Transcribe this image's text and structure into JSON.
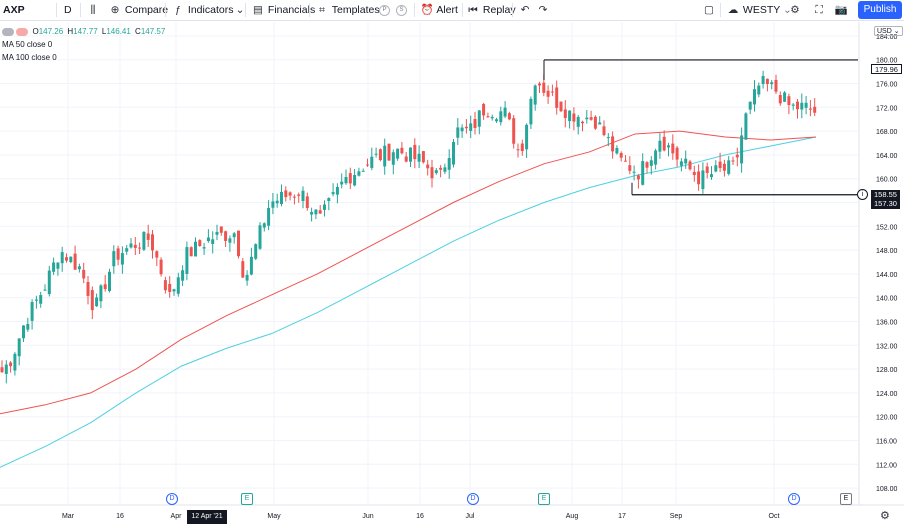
{
  "toolbar": {
    "symbol": "AXP",
    "interval": "D",
    "compare": "Compare",
    "indicators": "Indicators",
    "financials": "Financials",
    "templates": "Templates",
    "template_badge_p": "P",
    "template_badge_s": "S",
    "alert": "Alert",
    "replay": "Replay",
    "layout_name": "WESTY",
    "publish": "Publish"
  },
  "legend": {
    "o": "147.26",
    "h": "147.77",
    "l": "146.41",
    "c": "147.57",
    "o_key": "O",
    "h_key": "H",
    "l_key": "L",
    "c_key": "C",
    "ma50": "MA 50 close 0",
    "ma100": "MA 100 close 0"
  },
  "currency": "USD",
  "price_axis": [
    "184.00",
    "180.00",
    "176.00",
    "172.00",
    "168.00",
    "164.00",
    "160.00",
    "156.00",
    "152.00",
    "148.00",
    "144.00",
    "140.00",
    "136.00",
    "132.00",
    "128.00",
    "124.00",
    "120.00",
    "116.00",
    "112.00",
    "108.00"
  ],
  "price_tags": {
    "resistance": "179.96",
    "current": "158.55",
    "support": "157.30"
  },
  "time_axis": {
    "labels": [
      "Mar",
      "16",
      "Apr",
      "May",
      "Jun",
      "16",
      "Jul",
      "Aug",
      "17",
      "Sep",
      "Oct"
    ],
    "highlight": "12 Apr '21"
  },
  "events": {
    "dividend": "D",
    "earnings": "E"
  },
  "colors": {
    "up": "#26a69a",
    "down": "#ef5350",
    "ma50": "#ef5350",
    "ma100": "#4dd0e1",
    "accent": "#2962ff"
  },
  "chart_data": {
    "type": "candlestick",
    "symbol": "AXP",
    "interval": "D",
    "ylim": [
      106,
      186
    ],
    "last_ohlc": {
      "open": 147.26,
      "high": 147.77,
      "low": 146.41,
      "close": 147.57
    },
    "horizontal_lines": [
      179.96,
      157.3
    ],
    "series_mock_note_free": true,
    "closes_start": 127.0,
    "ma50_levels": [
      120.5,
      122.0,
      124.0,
      128.0,
      133.0,
      137.0,
      140.5,
      144.0,
      148.0,
      152.0,
      156.0,
      159.5,
      162.5,
      164.5,
      167.5,
      168.0,
      167.0,
      166.5,
      167.0
    ],
    "ma100_levels": [
      111.5,
      115.0,
      119.0,
      124.0,
      128.5,
      131.5,
      134.0,
      137.5,
      141.5,
      145.5,
      149.5,
      153.0,
      156.0,
      158.5,
      160.5,
      162.0,
      164.0,
      165.5,
      167.0
    ]
  }
}
